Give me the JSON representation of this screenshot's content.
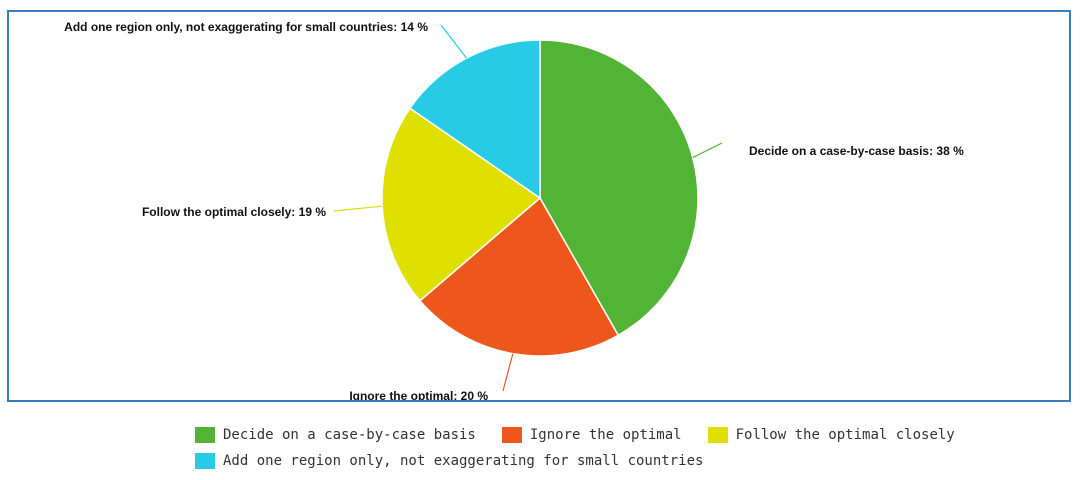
{
  "chart_data": {
    "type": "pie",
    "title": "",
    "start_angle_deg": 0,
    "direction": "clockwise",
    "slices": [
      {
        "name": "Decide on a case-by-case basis",
        "label": "Decide on a case-by-case basis: 38 %",
        "value": 38,
        "color": "#52b435"
      },
      {
        "name": "Ignore the optimal",
        "label": "Ignore the optimal: 20 %",
        "value": 20,
        "color": "#ee571c"
      },
      {
        "name": "Follow the optimal closely",
        "label": "Follow the optimal closely: 19 %",
        "value": 19,
        "color": "#dfe000"
      },
      {
        "name": "Add one region only, not exaggerating for small countries",
        "label": "Add one region only, not exaggerating for small countries: 14 %",
        "value": 14,
        "color": "#27cbe6"
      }
    ],
    "legend": {
      "placement": "bottom"
    }
  },
  "colors": {
    "frame_border": "#3a7dbf"
  }
}
